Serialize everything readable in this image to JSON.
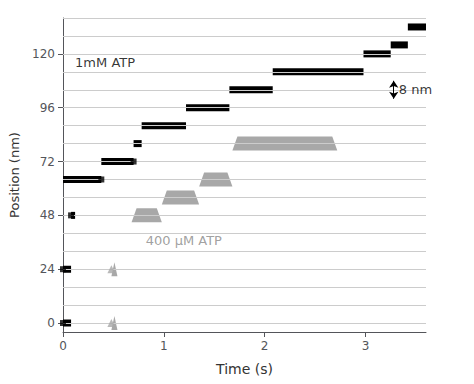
{
  "chart_data": {
    "type": "staircase",
    "title": "",
    "xlabel": "Time (s)",
    "ylabel": "Position (nm)",
    "xlim": [
      0,
      3.6
    ],
    "ylim": [
      -4,
      136
    ],
    "xticks": [
      0,
      1,
      2,
      3
    ],
    "yticks": [
      0,
      24,
      48,
      72,
      96,
      120
    ],
    "grid": true,
    "grid_lines": [
      0,
      8,
      16,
      24,
      32,
      40,
      48,
      56,
      64,
      72,
      80,
      88,
      96,
      104,
      112,
      120,
      128,
      136
    ],
    "series": [
      {
        "type": "trapezoid",
        "color": "#a8a8a8",
        "values": [
          [
            0.48,
            0.54,
            0
          ],
          [
            0.48,
            0.54,
            24
          ],
          [
            0.68,
            0.98,
            48
          ],
          [
            0.98,
            1.35,
            56
          ],
          [
            1.35,
            1.68,
            64
          ],
          [
            1.68,
            2.72,
            80
          ]
        ]
      },
      {
        "type": "bar_segment",
        "color": "#000000",
        "values": [
          [
            0.0,
            0.08,
            0
          ],
          [
            0.0,
            0.08,
            24
          ],
          [
            0.08,
            0.12,
            48
          ],
          [
            0.0,
            0.38,
            64
          ],
          [
            0.38,
            0.7,
            72
          ],
          [
            0.7,
            0.78,
            80
          ],
          [
            0.78,
            1.22,
            88
          ],
          [
            1.22,
            1.65,
            96
          ],
          [
            1.65,
            2.08,
            104
          ],
          [
            2.08,
            2.98,
            112
          ],
          [
            2.98,
            3.25,
            120
          ],
          [
            3.25,
            3.42,
            124
          ],
          [
            3.42,
            3.6,
            132
          ]
        ]
      },
      {
        "type": "scatter",
        "marker": "square",
        "color": "#000000",
        "values": [
          [
            0.0,
            0
          ],
          [
            0.0,
            24
          ],
          [
            0.08,
            48
          ],
          [
            0.38,
            64
          ],
          [
            0.7,
            72
          ]
        ]
      },
      {
        "type": "scatter",
        "marker": "triangle",
        "color": "#a8a8a8",
        "values": [
          [
            0.48,
            0
          ],
          [
            0.48,
            24
          ]
        ]
      }
    ],
    "annotations": [
      {
        "text": "1mM ATP",
        "x": 0.12,
        "y": 116,
        "color": "#000000"
      },
      {
        "text": "400 μM ATP",
        "x": 0.82,
        "y": 37,
        "color": "#888888"
      },
      {
        "text": "8 nm",
        "x": 3.33,
        "y": 104,
        "color": "#000000"
      }
    ],
    "arrow": {
      "x": 3.28,
      "y0": 100,
      "y1": 108,
      "color": "#000000"
    }
  }
}
